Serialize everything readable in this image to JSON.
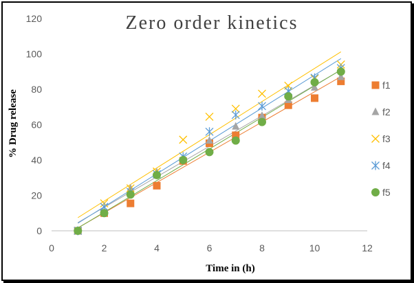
{
  "chart_data": {
    "type": "scatter",
    "title": "Zero order kinetics",
    "xlabel": "Time in (h)",
    "ylabel": "% Drug release",
    "xlim": [
      0,
      12
    ],
    "ylim": [
      0,
      120
    ],
    "xticks": [
      0,
      2,
      4,
      6,
      8,
      10,
      12
    ],
    "yticks": [
      0,
      20,
      40,
      60,
      80,
      100,
      120
    ],
    "grid": false,
    "legend_position": "right",
    "trendlines": "linear",
    "x": [
      1,
      2,
      3,
      4,
      5,
      6,
      7,
      8,
      9,
      10,
      11
    ],
    "series": [
      {
        "name": "f1",
        "marker": "square",
        "color": "#ED7D31",
        "values": [
          0,
          10,
          15.5,
          25.5,
          39.5,
          49.5,
          54,
          64,
          71,
          75,
          84.5
        ]
      },
      {
        "name": "f2",
        "marker": "triangle",
        "color": "#A5A5A5",
        "values": [
          0,
          10.5,
          24,
          33,
          41,
          51,
          59,
          65,
          74,
          81,
          87
        ]
      },
      {
        "name": "f3",
        "marker": "x",
        "color": "#FFC000",
        "values": [
          0,
          15.5,
          24,
          33.5,
          51.5,
          64.5,
          69,
          77.5,
          82,
          86,
          94
        ]
      },
      {
        "name": "f4",
        "marker": "asterisk",
        "color": "#5B9BD5",
        "values": [
          0,
          13.5,
          22,
          32,
          42,
          56,
          65.5,
          70.5,
          79,
          86.5,
          92
        ]
      },
      {
        "name": "f5",
        "marker": "circle",
        "color": "#70AD47",
        "values": [
          0,
          10,
          20.5,
          31.5,
          40,
          44.5,
          51,
          61.5,
          76,
          84,
          90
        ]
      }
    ]
  }
}
